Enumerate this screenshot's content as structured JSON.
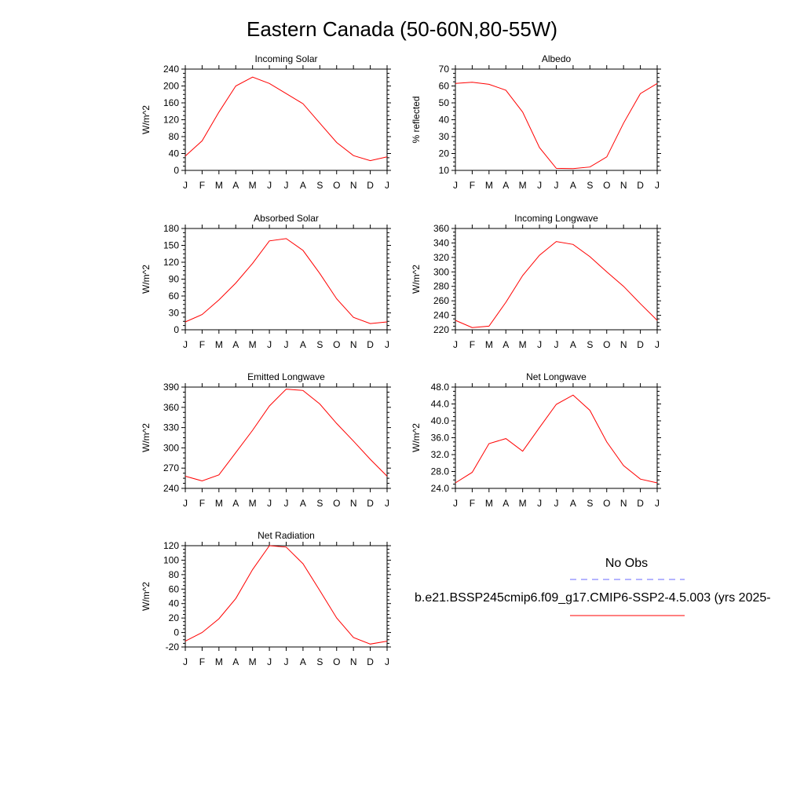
{
  "title": "Eastern Canada (50-60N,80-55W)",
  "legend": {
    "obs_label": "No Obs",
    "obs_color": "#6a6aff",
    "model_label": "b.e21.BSSP245cmip6.f09_g17.CMIP6-SSP2-4.5.003 (yrs 2025-",
    "model_color": "#ff0000"
  },
  "line_color": "#ff0000",
  "chart_data": [
    {
      "type": "line",
      "title": "Incoming Solar",
      "ylabel": "W/m^2",
      "categories": [
        "J",
        "F",
        "M",
        "A",
        "M",
        "J",
        "J",
        "A",
        "S",
        "O",
        "N",
        "D",
        "J"
      ],
      "ylim": [
        0,
        240
      ],
      "yticks": [
        0,
        40,
        80,
        120,
        160,
        200,
        240
      ],
      "ytick_labels": [
        "0",
        "40",
        "80",
        "120",
        "160",
        "200",
        "240"
      ],
      "values": [
        34,
        70,
        138,
        200,
        221,
        206,
        182,
        158,
        112,
        66,
        35,
        23,
        32
      ]
    },
    {
      "type": "line",
      "title": "Albedo",
      "ylabel": "% reflected",
      "categories": [
        "J",
        "F",
        "M",
        "A",
        "M",
        "J",
        "J",
        "A",
        "S",
        "O",
        "N",
        "D",
        "J"
      ],
      "ylim": [
        10,
        70
      ],
      "yticks": [
        10,
        20,
        30,
        40,
        50,
        60,
        70
      ],
      "ytick_labels": [
        "10",
        "20",
        "30",
        "40",
        "50",
        "60",
        "70"
      ],
      "values": [
        61.5,
        62.2,
        61.0,
        57.5,
        44.5,
        23.5,
        11.2,
        11.0,
        12.0,
        18.0,
        38.0,
        55.5,
        61.5
      ]
    },
    {
      "type": "line",
      "title": "Absorbed Solar",
      "ylabel": "W/m^2",
      "categories": [
        "J",
        "F",
        "M",
        "A",
        "M",
        "J",
        "J",
        "A",
        "S",
        "O",
        "N",
        "D",
        "J"
      ],
      "ylim": [
        0,
        180
      ],
      "yticks": [
        0,
        30,
        60,
        90,
        120,
        150,
        180
      ],
      "ytick_labels": [
        "0",
        "30",
        "60",
        "90",
        "120",
        "150",
        "180"
      ],
      "values": [
        14,
        27,
        53,
        83,
        118,
        158,
        162,
        141,
        100,
        55,
        22,
        11,
        14
      ]
    },
    {
      "type": "line",
      "title": "Incoming Longwave",
      "ylabel": "W/m^2",
      "categories": [
        "J",
        "F",
        "M",
        "A",
        "M",
        "J",
        "J",
        "A",
        "S",
        "O",
        "N",
        "D",
        "J"
      ],
      "ylim": [
        220,
        360
      ],
      "yticks": [
        220,
        240,
        260,
        280,
        300,
        320,
        340,
        360
      ],
      "ytick_labels": [
        "220",
        "240",
        "260",
        "280",
        "300",
        "320",
        "340",
        "360"
      ],
      "values": [
        233,
        223,
        225,
        258,
        295,
        323,
        342,
        338,
        321,
        300,
        280,
        256,
        233
      ]
    },
    {
      "type": "line",
      "title": "Emitted Longwave",
      "ylabel": "W/m^2",
      "categories": [
        "J",
        "F",
        "M",
        "A",
        "M",
        "J",
        "J",
        "A",
        "S",
        "O",
        "N",
        "D",
        "J"
      ],
      "ylim": [
        240,
        390
      ],
      "yticks": [
        240,
        270,
        300,
        330,
        360,
        390
      ],
      "ytick_labels": [
        "240",
        "270",
        "300",
        "330",
        "360",
        "390"
      ],
      "values": [
        258,
        251,
        260,
        293,
        326,
        362,
        387,
        385,
        365,
        336,
        310,
        283,
        258
      ]
    },
    {
      "type": "line",
      "title": "Net Longwave",
      "ylabel": "W/m^2",
      "categories": [
        "J",
        "F",
        "M",
        "A",
        "M",
        "J",
        "J",
        "A",
        "S",
        "O",
        "N",
        "D",
        "J"
      ],
      "ylim": [
        24,
        48
      ],
      "yticks": [
        24,
        28,
        32,
        36,
        40,
        44,
        48
      ],
      "ytick_labels": [
        "24.0",
        "28.0",
        "32.0",
        "36.0",
        "40.0",
        "44.0",
        "48.0"
      ],
      "values": [
        25.3,
        27.8,
        34.6,
        35.8,
        32.8,
        38.4,
        43.9,
        46.1,
        42.5,
        35.0,
        29.4,
        26.2,
        25.3
      ]
    },
    {
      "type": "line",
      "title": "Net Radiation",
      "ylabel": "W/m^2",
      "categories": [
        "J",
        "F",
        "M",
        "A",
        "M",
        "J",
        "J",
        "A",
        "S",
        "O",
        "N",
        "D",
        "J"
      ],
      "ylim": [
        -20,
        120
      ],
      "yticks": [
        -20,
        0,
        20,
        40,
        60,
        80,
        100,
        120
      ],
      "ytick_labels": [
        "-20",
        "0",
        "20",
        "40",
        "60",
        "80",
        "100",
        "120"
      ],
      "values": [
        -12,
        0,
        19,
        47,
        87,
        120,
        118,
        95,
        58,
        20,
        -7,
        -16,
        -12
      ]
    }
  ]
}
